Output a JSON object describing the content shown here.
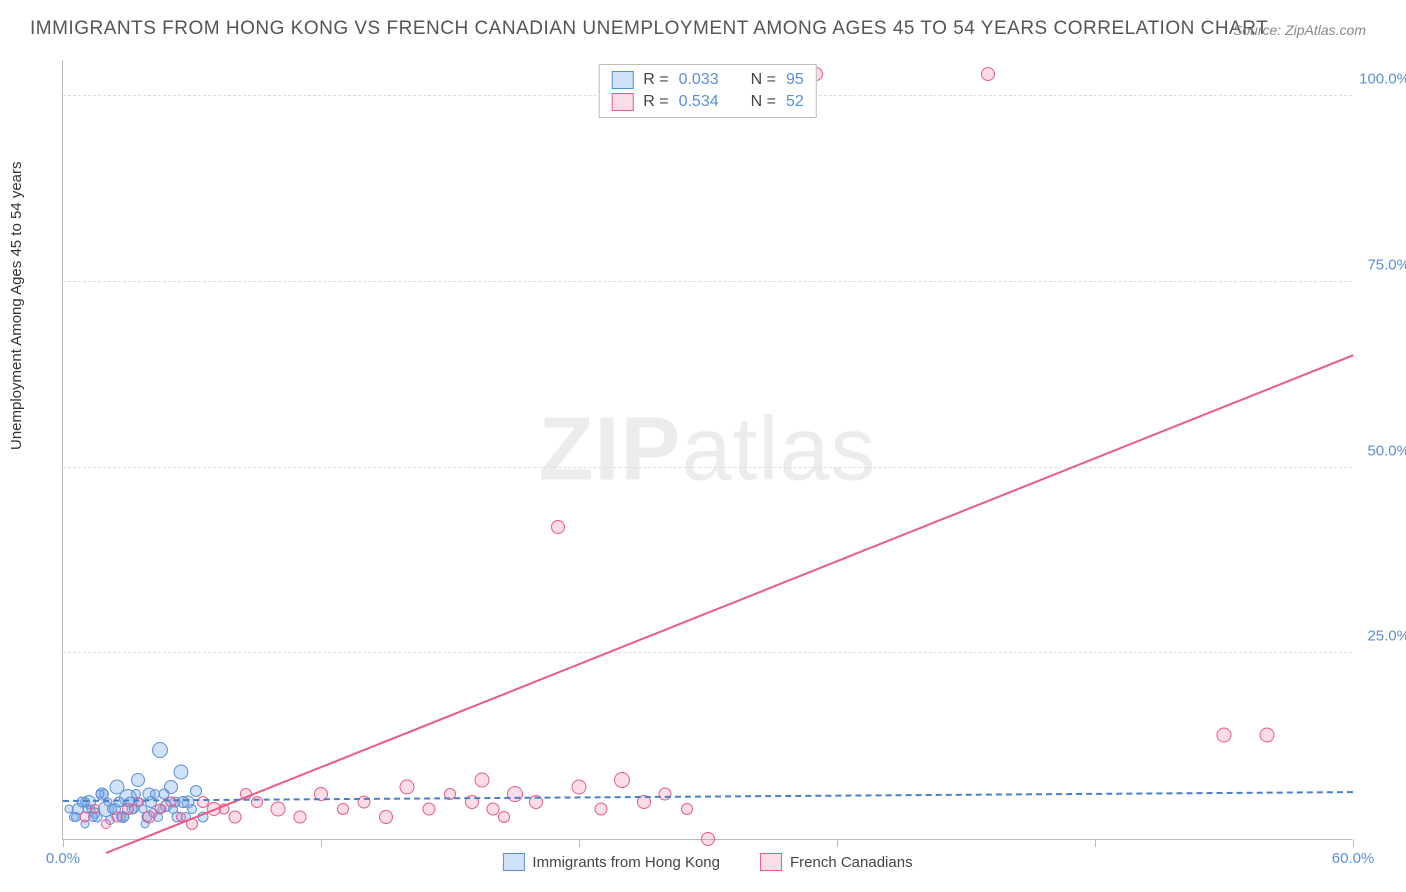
{
  "title": "IMMIGRANTS FROM HONG KONG VS FRENCH CANADIAN UNEMPLOYMENT AMONG AGES 45 TO 54 YEARS CORRELATION CHART",
  "source": "Source: ZipAtlas.com",
  "y_axis_label": "Unemployment Among Ages 45 to 54 years",
  "watermark": "ZIPatlas",
  "chart": {
    "type": "scatter",
    "xlim": [
      0,
      60
    ],
    "ylim": [
      0,
      105
    ],
    "x_ticks": [
      0,
      12,
      24,
      36,
      48,
      60
    ],
    "x_tick_labels": [
      "0.0%",
      "",
      "",
      "",
      "",
      "60.0%"
    ],
    "y_ticks": [
      25,
      50,
      75,
      100
    ],
    "y_tick_labels": [
      "25.0%",
      "50.0%",
      "75.0%",
      "100.0%"
    ],
    "background_color": "#ffffff",
    "grid_color": "#dddddd",
    "axis_color": "#bbbbbb",
    "tick_label_color": "#5a8fd6"
  },
  "series": {
    "blue": {
      "label": "Immigrants from Hong Kong",
      "color_fill": "rgba(120,170,235,0.35)",
      "color_stroke": "#5a8fd6",
      "R": "0.033",
      "N": "95",
      "trend": {
        "x1": 0,
        "y1": 5.0,
        "x2": 60,
        "y2": 6.2,
        "color": "#4a7fc6",
        "dashed": true
      },
      "points": [
        [
          0.5,
          3,
          10
        ],
        [
          0.7,
          4,
          12
        ],
        [
          1.0,
          2,
          9
        ],
        [
          1.2,
          5,
          14
        ],
        [
          1.5,
          3.5,
          11
        ],
        [
          1.8,
          6,
          13
        ],
        [
          2.0,
          4,
          16
        ],
        [
          2.2,
          2.5,
          10
        ],
        [
          2.5,
          7,
          15
        ],
        [
          2.8,
          3,
          12
        ],
        [
          3.0,
          5.5,
          18
        ],
        [
          3.2,
          4,
          11
        ],
        [
          3.5,
          8,
          14
        ],
        [
          3.8,
          2,
          9
        ],
        [
          4.0,
          6,
          13
        ],
        [
          4.2,
          3.5,
          10
        ],
        [
          4.5,
          12,
          16
        ],
        [
          4.8,
          4.5,
          12
        ],
        [
          5.0,
          7,
          14
        ],
        [
          5.3,
          3,
          11
        ],
        [
          5.5,
          9,
          15
        ],
        [
          5.8,
          5,
          13
        ],
        [
          6.0,
          4,
          10
        ],
        [
          6.2,
          6.5,
          12
        ],
        [
          6.5,
          3,
          11
        ],
        [
          1.0,
          5,
          10
        ],
        [
          1.3,
          4,
          9
        ],
        [
          1.6,
          3,
          11
        ],
        [
          1.9,
          6,
          10
        ],
        [
          2.1,
          5,
          9
        ],
        [
          2.4,
          4,
          12
        ],
        [
          2.7,
          3,
          10
        ],
        [
          3.1,
          5,
          11
        ],
        [
          3.4,
          6,
          10
        ],
        [
          3.7,
          4,
          9
        ],
        [
          4.1,
          5,
          12
        ],
        [
          4.4,
          3,
          10
        ],
        [
          4.7,
          6,
          11
        ],
        [
          5.1,
          4,
          10
        ],
        [
          5.6,
          5,
          12
        ],
        [
          0.3,
          4,
          9
        ],
        [
          0.6,
          3,
          10
        ],
        [
          0.9,
          5,
          11
        ],
        [
          1.1,
          4,
          9
        ],
        [
          1.4,
          3,
          10
        ],
        [
          1.7,
          6,
          9
        ],
        [
          2.3,
          4,
          10
        ],
        [
          2.6,
          5,
          11
        ],
        [
          2.9,
          3,
          9
        ],
        [
          3.3,
          4,
          10
        ],
        [
          3.6,
          5,
          9
        ],
        [
          3.9,
          3,
          11
        ],
        [
          4.3,
          6,
          10
        ],
        [
          4.6,
          4,
          9
        ],
        [
          5.2,
          5,
          11
        ],
        [
          5.7,
          3,
          10
        ]
      ]
    },
    "pink": {
      "label": "French Canadians",
      "color_fill": "rgba(240,120,160,0.25)",
      "color_stroke": "#e85a8a",
      "R": "0.534",
      "N": "52",
      "trend": {
        "x1": 2,
        "y1": -2,
        "x2": 60,
        "y2": 65,
        "color": "#e85a8a",
        "dashed": false
      },
      "points": [
        [
          1,
          3,
          11
        ],
        [
          2,
          2,
          10
        ],
        [
          3,
          4,
          12
        ],
        [
          4,
          3,
          13
        ],
        [
          5,
          5,
          11
        ],
        [
          6,
          2,
          12
        ],
        [
          7,
          4,
          14
        ],
        [
          8,
          3,
          13
        ],
        [
          9,
          5,
          12
        ],
        [
          10,
          4,
          15
        ],
        [
          11,
          3,
          13
        ],
        [
          12,
          6,
          14
        ],
        [
          13,
          4,
          12
        ],
        [
          14,
          5,
          13
        ],
        [
          15,
          3,
          14
        ],
        [
          16,
          7,
          15
        ],
        [
          17,
          4,
          13
        ],
        [
          18,
          6,
          12
        ],
        [
          19,
          5,
          14
        ],
        [
          19.5,
          8,
          15
        ],
        [
          20,
          4,
          13
        ],
        [
          20.5,
          3,
          12
        ],
        [
          21,
          6,
          16
        ],
        [
          22,
          5,
          14
        ],
        [
          23,
          42,
          14
        ],
        [
          24,
          7,
          15
        ],
        [
          25,
          4,
          13
        ],
        [
          26,
          8,
          16
        ],
        [
          27,
          5,
          14
        ],
        [
          28,
          6,
          13
        ],
        [
          29,
          4,
          12
        ],
        [
          30,
          0,
          14
        ],
        [
          35,
          103,
          14
        ],
        [
          43,
          103,
          14
        ],
        [
          54,
          14,
          15
        ],
        [
          56,
          14,
          15
        ],
        [
          1.5,
          4,
          10
        ],
        [
          2.5,
          3,
          11
        ],
        [
          3.5,
          5,
          10
        ],
        [
          4.5,
          4,
          11
        ],
        [
          5.5,
          3,
          10
        ],
        [
          6.5,
          5,
          12
        ],
        [
          7.5,
          4,
          11
        ],
        [
          8.5,
          6,
          12
        ]
      ]
    }
  },
  "legend_top": {
    "r_label": "R =",
    "n_label": "N ="
  },
  "legend_bottom": {
    "items": [
      {
        "swatch_fill": "rgba(120,170,235,0.35)",
        "swatch_stroke": "#5a8fd6",
        "label_key": "series.blue.label"
      },
      {
        "swatch_fill": "rgba(240,120,160,0.25)",
        "swatch_stroke": "#e85a8a",
        "label_key": "series.pink.label"
      }
    ]
  }
}
